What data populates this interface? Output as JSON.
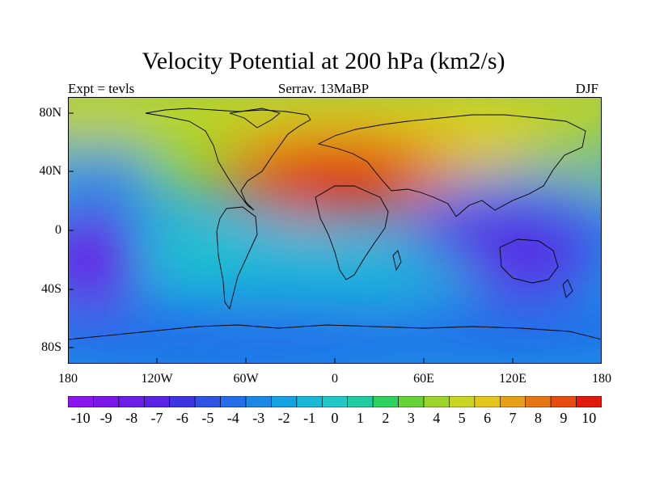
{
  "header": {
    "title": "Velocity Potential at 200 hPa (km2/s)",
    "left": "Expt = tevls",
    "center": "Serrav.  13MaBP",
    "right": "DJF"
  },
  "axes": {
    "y_ticks": [
      "80N",
      "40N",
      "0",
      "40S",
      "80S"
    ],
    "x_ticks": [
      "180",
      "120W",
      "60W",
      "0",
      "60E",
      "120E",
      "180"
    ]
  },
  "colorbar": {
    "levels": [
      -10,
      -9,
      -8,
      -7,
      -6,
      -5,
      -4,
      -3,
      -2,
      -1,
      0,
      1,
      2,
      3,
      4,
      5,
      6,
      7,
      8,
      9,
      10
    ],
    "labels": [
      "-10",
      "-9",
      "-8",
      "-7",
      "-6",
      "-5",
      "-4",
      "-3",
      "-2",
      "-1",
      "0",
      "1",
      "2",
      "3",
      "4",
      "5",
      "6",
      "7",
      "8",
      "9",
      "10"
    ],
    "colors": [
      "#8a16ee",
      "#7a17ea",
      "#6a1ee6",
      "#5a22e4",
      "#3d35df",
      "#2f53e3",
      "#246eea",
      "#1c88e6",
      "#16a2e2",
      "#1bb8d8",
      "#20c9c8",
      "#1ecca2",
      "#2dd25e",
      "#66d436",
      "#9dd42c",
      "#c9d423",
      "#e4c61d",
      "#e6a018",
      "#e67714",
      "#e64b0f",
      "#e1180c"
    ]
  },
  "map_colors": {
    "land_outline": "#000000",
    "plot_border": "#000000"
  }
}
